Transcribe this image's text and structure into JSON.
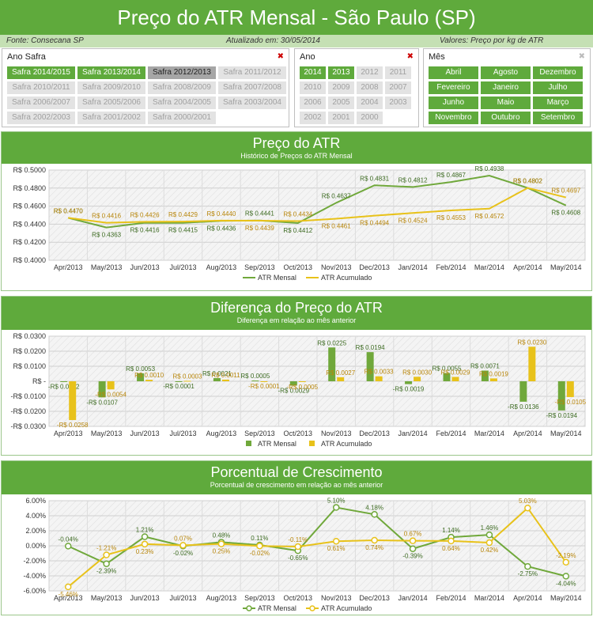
{
  "header": {
    "title": "Preço do ATR Mensal - São Paulo (SP)"
  },
  "infobar": {
    "source": "Fonte: Consecana SP",
    "updated": "Atualizado em: 30/05/2014",
    "values": "Valores: Preço por kg de ATR"
  },
  "slicers": {
    "safra": {
      "title": "Ano Safra",
      "items": [
        {
          "label": "Safra 2014/2015",
          "state": "on"
        },
        {
          "label": "Safra 2013/2014",
          "state": "on"
        },
        {
          "label": "Safra 2012/2013",
          "state": "mid"
        },
        {
          "label": "Safra 2011/2012",
          "state": "off"
        },
        {
          "label": "Safra 2010/2011",
          "state": "off"
        },
        {
          "label": "Safra 2009/2010",
          "state": "off"
        },
        {
          "label": "Safra 2008/2009",
          "state": "off"
        },
        {
          "label": "Safra 2007/2008",
          "state": "off"
        },
        {
          "label": "Safra 2006/2007",
          "state": "off"
        },
        {
          "label": "Safra 2005/2006",
          "state": "off"
        },
        {
          "label": "Safra 2004/2005",
          "state": "off"
        },
        {
          "label": "Safra 2003/2004",
          "state": "off"
        },
        {
          "label": "Safra 2002/2003",
          "state": "off"
        },
        {
          "label": "Safra 2001/2002",
          "state": "off"
        },
        {
          "label": "Safra 2000/2001",
          "state": "off"
        }
      ]
    },
    "ano": {
      "title": "Ano",
      "items": [
        {
          "label": "2014",
          "state": "on"
        },
        {
          "label": "2013",
          "state": "on"
        },
        {
          "label": "2012",
          "state": "off"
        },
        {
          "label": "2011",
          "state": "off"
        },
        {
          "label": "2010",
          "state": "off"
        },
        {
          "label": "2009",
          "state": "off"
        },
        {
          "label": "2008",
          "state": "off"
        },
        {
          "label": "2007",
          "state": "off"
        },
        {
          "label": "2006",
          "state": "off"
        },
        {
          "label": "2005",
          "state": "off"
        },
        {
          "label": "2004",
          "state": "off"
        },
        {
          "label": "2003",
          "state": "off"
        },
        {
          "label": "2002",
          "state": "off"
        },
        {
          "label": "2001",
          "state": "off"
        },
        {
          "label": "2000",
          "state": "off"
        }
      ]
    },
    "mes": {
      "title": "Mês",
      "items": [
        {
          "label": "Abril",
          "state": "on"
        },
        {
          "label": "Agosto",
          "state": "on"
        },
        {
          "label": "Dezembro",
          "state": "on"
        },
        {
          "label": "Fevereiro",
          "state": "on"
        },
        {
          "label": "Janeiro",
          "state": "on"
        },
        {
          "label": "Julho",
          "state": "on"
        },
        {
          "label": "Junho",
          "state": "on"
        },
        {
          "label": "Maio",
          "state": "on"
        },
        {
          "label": "Março",
          "state": "on"
        },
        {
          "label": "Novembro",
          "state": "on"
        },
        {
          "label": "Outubro",
          "state": "on"
        },
        {
          "label": "Setembro",
          "state": "on"
        }
      ]
    }
  },
  "colors": {
    "green": "#5faa3c",
    "mensal": "#70a83b",
    "acumulado": "#e8c21a"
  },
  "chart_data": [
    {
      "type": "line",
      "title": "Preço do ATR",
      "subtitle": "Histórico de Preços do ATR Mensal",
      "categories": [
        "Apr/2013",
        "May/2013",
        "Jun/2013",
        "Jul/2013",
        "Aug/2013",
        "Sep/2013",
        "Oct/2013",
        "Nov/2013",
        "Dec/2013",
        "Jan/2014",
        "Feb/2014",
        "Mar/2014",
        "Apr/2014",
        "May/2014"
      ],
      "series": [
        {
          "name": "ATR Mensal",
          "values": [
            0.447,
            0.4363,
            0.4416,
            0.4415,
            0.4436,
            0.4441,
            0.4412,
            0.4637,
            0.4831,
            0.4812,
            0.4867,
            0.4938,
            0.4802,
            0.4608
          ],
          "labels": [
            "R$ 0.4470",
            "R$ 0.4363",
            "R$ 0.4416",
            "R$ 0.4415",
            "R$ 0.4436",
            "R$ 0.4441",
            "R$ 0.4412",
            "R$ 0.4637",
            "R$ 0.4831",
            "R$ 0.4812",
            "R$ 0.4867",
            "R$ 0.4938",
            "R$ 0.4802",
            "R$ 0.4608"
          ]
        },
        {
          "name": "ATR Acumulado",
          "values": [
            0.447,
            0.4416,
            0.4426,
            0.4429,
            0.444,
            0.4439,
            0.4434,
            0.4461,
            0.4494,
            0.4524,
            0.4553,
            0.4572,
            0.4802,
            0.4697
          ],
          "labels": [
            "R$ 0.4470",
            "R$ 0.4416",
            "R$ 0.4426",
            "R$ 0.4429",
            "R$ 0.4440",
            "R$ 0.4439",
            "R$ 0.4434",
            "R$ 0.4461",
            "R$ 0.4494",
            "R$ 0.4524",
            "R$ 0.4553",
            "R$ 0.4572",
            "R$ 0.4802",
            "R$ 0.4697"
          ]
        }
      ],
      "ylim": [
        0.4,
        0.5
      ],
      "yticks": [
        "R$ 0.4000",
        "R$ 0.4200",
        "R$ 0.4400",
        "R$ 0.4600",
        "R$ 0.4800",
        "R$ 0.5000"
      ],
      "legend": "bottom"
    },
    {
      "type": "bar",
      "title": "Diferença do Preço do ATR",
      "subtitle": "Diferença em relação ao mês anterior",
      "categories": [
        "Apr/2013",
        "May/2013",
        "Jun/2013",
        "Jul/2013",
        "Aug/2013",
        "Sep/2013",
        "Oct/2013",
        "Nov/2013",
        "Dec/2013",
        "Jan/2014",
        "Feb/2014",
        "Mar/2014",
        "Apr/2014",
        "May/2014"
      ],
      "series": [
        {
          "name": "ATR Mensal",
          "values": [
            -0.0002,
            -0.0107,
            0.0053,
            -0.0001,
            0.0021,
            0.0005,
            -0.0029,
            0.0225,
            0.0194,
            -0.0019,
            0.0055,
            0.0071,
            -0.0136,
            -0.0194
          ],
          "labels": [
            "-R$ 0.0002",
            "-R$ 0.0107",
            "R$ 0.0053",
            "-R$ 0.0001",
            "R$ 0.0021",
            "R$ 0.0005",
            "-R$ 0.0029",
            "R$ 0.0225",
            "R$ 0.0194",
            "-R$ 0.0019",
            "R$ 0.0055",
            "R$ 0.0071",
            "-R$ 0.0136",
            "-R$ 0.0194"
          ]
        },
        {
          "name": "ATR Acumulado",
          "values": [
            -0.0258,
            -0.0054,
            0.001,
            0.0003,
            0.0011,
            -0.0001,
            -0.0005,
            0.0027,
            0.0033,
            0.003,
            0.0029,
            0.0019,
            0.023,
            -0.0105
          ],
          "labels": [
            "-R$ 0.0258",
            "-R$ 0.0054",
            "R$ 0.0010",
            "R$ 0.0003",
            "R$ 0.0011",
            "-R$ 0.0001",
            "-R$ 0.0005",
            "R$ 0.0027",
            "R$ 0.0033",
            "R$ 0.0030",
            "R$ 0.0029",
            "R$ 0.0019",
            "R$ 0.0230",
            "-R$ 0.0105"
          ]
        }
      ],
      "ylim": [
        -0.03,
        0.03
      ],
      "yticks": [
        "-R$ 0.0300",
        "-R$ 0.0200",
        "-R$ 0.0100",
        "R$ -",
        "R$ 0.0100",
        "R$ 0.0200",
        "R$ 0.0300"
      ],
      "legend": "bottom"
    },
    {
      "type": "line",
      "title": "Porcentual de Crescimento",
      "subtitle": "Porcentual de crescimento em relação ao mês anterior",
      "categories": [
        "Apr/2013",
        "May/2013",
        "Jun/2013",
        "Jul/2013",
        "Aug/2013",
        "Sep/2013",
        "Oct/2013",
        "Nov/2013",
        "Dec/2013",
        "Jan/2014",
        "Feb/2014",
        "Mar/2014",
        "Apr/2014",
        "May/2014"
      ],
      "series": [
        {
          "name": "ATR Mensal",
          "values": [
            -0.04,
            -2.39,
            1.21,
            -0.02,
            0.48,
            0.11,
            -0.65,
            5.1,
            4.18,
            -0.39,
            1.14,
            1.46,
            -2.75,
            -4.04
          ],
          "labels": [
            "-0.04%",
            "-2.39%",
            "1.21%",
            "-0.02%",
            "0.48%",
            "0.11%",
            "-0.65%",
            "5.10%",
            "4.18%",
            "-0.39%",
            "1.14%",
            "1.46%",
            "-2.75%",
            "-4.04%"
          ]
        },
        {
          "name": "ATR Acumulado",
          "values": [
            -5.46,
            -1.21,
            0.23,
            0.07,
            0.25,
            -0.02,
            -0.11,
            0.61,
            0.74,
            0.67,
            0.64,
            0.42,
            5.03,
            -2.19
          ],
          "labels": [
            "-5.46%",
            "-1.21%",
            "0.23%",
            "0.07%",
            "0.25%",
            "-0.02%",
            "-0.11%",
            "0.61%",
            "0.74%",
            "0.67%",
            "0.64%",
            "0.42%",
            "5.03%",
            "-2.19%"
          ]
        }
      ],
      "ylim": [
        -6,
        6
      ],
      "yticks": [
        "-6.00%",
        "-4.00%",
        "-2.00%",
        "0.00%",
        "2.00%",
        "4.00%",
        "6.00%"
      ],
      "legend": "bottom"
    }
  ]
}
